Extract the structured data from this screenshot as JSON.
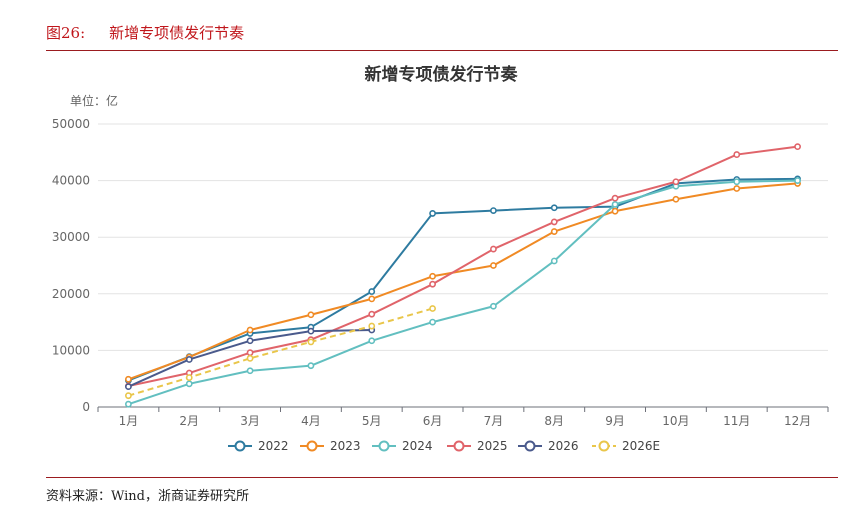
{
  "figure": {
    "caption_num": "图26:",
    "caption_text": "新增专项债发行节奏",
    "source": "资料来源：Wind，浙商证券研究所"
  },
  "chart_data": {
    "type": "line",
    "title": "新增专项债发行节奏",
    "unit_label": "单位：亿",
    "categories": [
      "1月",
      "2月",
      "3月",
      "4月",
      "5月",
      "6月",
      "7月",
      "8月",
      "9月",
      "10月",
      "11月",
      "12月"
    ],
    "ylim": [
      0,
      50000
    ],
    "yticks": [
      0,
      10000,
      20000,
      30000,
      40000,
      50000
    ],
    "grid": true,
    "legend_position": "bottom",
    "series": [
      {
        "name": "2022",
        "color": "#2e7ba0",
        "dashed": false,
        "values": [
          4700,
          8900,
          13000,
          14100,
          20400,
          34200,
          34700,
          35200,
          35400,
          39500,
          40200,
          40300
        ]
      },
      {
        "name": "2023",
        "color": "#f08a24",
        "dashed": false,
        "values": [
          4900,
          8800,
          13600,
          16300,
          19100,
          23100,
          25000,
          31000,
          34600,
          36700,
          38600,
          39500
        ]
      },
      {
        "name": "2024",
        "color": "#62bfc0",
        "dashed": false,
        "values": [
          500,
          4100,
          6400,
          7300,
          11700,
          15000,
          17800,
          25800,
          35800,
          39000,
          39800,
          40000
        ]
      },
      {
        "name": "2025",
        "color": "#e0646a",
        "dashed": false,
        "values": [
          3700,
          6000,
          9600,
          11900,
          16400,
          21700,
          27900,
          32700,
          36900,
          39800,
          44600,
          46000
        ]
      },
      {
        "name": "2026",
        "color": "#4a5a8c",
        "dashed": false,
        "values": [
          3600,
          8400,
          11700,
          13400,
          13600,
          null,
          null,
          null,
          null,
          null,
          null,
          null
        ]
      },
      {
        "name": "2026E",
        "color": "#e9c64a",
        "dashed": true,
        "values": [
          2000,
          5200,
          8600,
          11500,
          14300,
          17400,
          null,
          null,
          null,
          null,
          null,
          null
        ]
      }
    ]
  }
}
